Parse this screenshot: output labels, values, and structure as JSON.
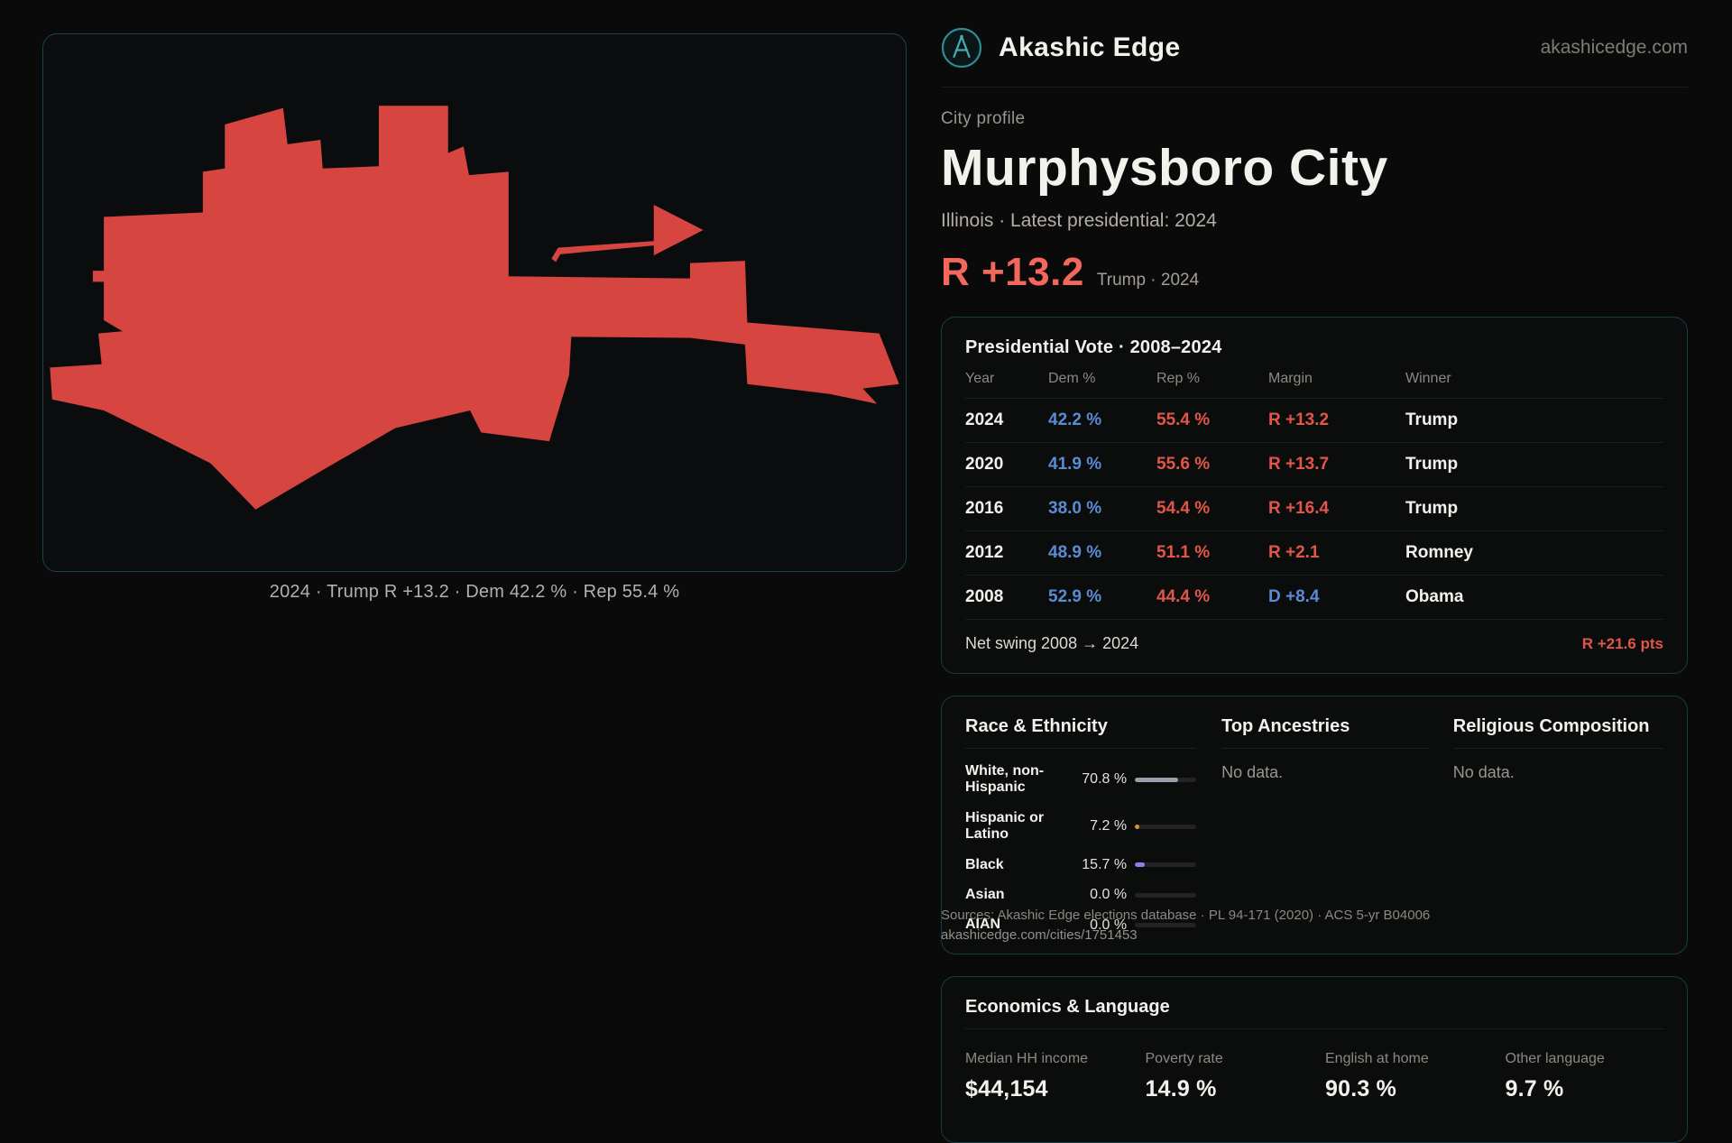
{
  "brand": {
    "name": "Akashic Edge",
    "domain": "akashicedge.com"
  },
  "profile": {
    "kicker": "City profile",
    "title": "Murphysboro City",
    "subtitle": "Illinois · Latest presidential: 2024",
    "headline_margin": "R +13.2",
    "headline_note": "Trump · 2024"
  },
  "map": {
    "caption": "2024 · Trump R +13.2 · Dem 42.2 % · Rep 55.4 %",
    "fill_color": "#d6453f"
  },
  "presidential": {
    "title": "Presidential Vote · 2008–2024",
    "columns": [
      "Year",
      "Dem %",
      "Rep %",
      "Margin",
      "Winner"
    ],
    "rows": [
      {
        "year": "2024",
        "dem": "42.2 %",
        "rep": "55.4 %",
        "margin": "R +13.2",
        "margin_party": "R",
        "winner": "Trump"
      },
      {
        "year": "2020",
        "dem": "41.9 %",
        "rep": "55.6 %",
        "margin": "R +13.7",
        "margin_party": "R",
        "winner": "Trump"
      },
      {
        "year": "2016",
        "dem": "38.0 %",
        "rep": "54.4 %",
        "margin": "R +16.4",
        "margin_party": "R",
        "winner": "Trump"
      },
      {
        "year": "2012",
        "dem": "48.9 %",
        "rep": "51.1 %",
        "margin": "R +2.1",
        "margin_party": "R",
        "winner": "Romney"
      },
      {
        "year": "2008",
        "dem": "52.9 %",
        "rep": "44.4 %",
        "margin": "D +8.4",
        "margin_party": "D",
        "winner": "Obama"
      }
    ],
    "net_swing_label": "Net swing 2008 → 2024",
    "net_swing_value": "R +21.6 pts"
  },
  "demographics": {
    "race_title": "Race & Ethnicity",
    "race_rows": [
      {
        "label": "White, non-Hispanic",
        "value": "70.8 %",
        "pct": 70.8,
        "color": "#9aa0ab"
      },
      {
        "label": "Hispanic or Latino",
        "value": "7.2 %",
        "pct": 7.2,
        "color": "#e0922f"
      },
      {
        "label": "Black",
        "value": "15.7 %",
        "pct": 15.7,
        "color": "#8f7ee8"
      },
      {
        "label": "Asian",
        "value": "0.0 %",
        "pct": 0,
        "color": "#9aa0ab"
      },
      {
        "label": "AIAN",
        "value": "0.0 %",
        "pct": 0,
        "color": "#9aa0ab"
      }
    ],
    "ancestries_title": "Top Ancestries",
    "ancestries_empty": "No data.",
    "religion_title": "Religious Composition",
    "religion_empty": "No data."
  },
  "economics": {
    "title": "Economics & Language",
    "stats": [
      {
        "label": "Median HH income",
        "value": "$44,154"
      },
      {
        "label": "Poverty rate",
        "value": "14.9 %"
      },
      {
        "label": "English at home",
        "value": "90.3 %"
      },
      {
        "label": "Other language",
        "value": "9.7 %"
      }
    ]
  },
  "footer": {
    "sources": "Sources: Akashic Edge elections database · PL 94-171 (2020) · ACS 5-yr B04006",
    "link": "akashicedge.com/cities/1751453"
  },
  "colors": {
    "dem_blue": "#5b8bd4",
    "rep_red": "#e2564a",
    "accent_red": "#f2685c",
    "map_red": "#d6453f"
  }
}
